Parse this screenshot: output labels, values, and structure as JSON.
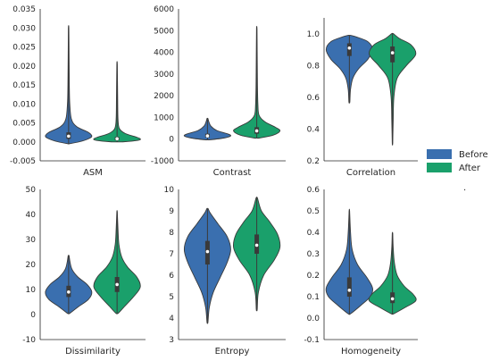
{
  "chart_data": {
    "type": "violin",
    "legend": {
      "placement": "right",
      "entries": [
        {
          "label": "Before",
          "color": "#3a6faf"
        },
        {
          "label": "After",
          "color": "#1aa06b"
        }
      ],
      "footnote": "."
    },
    "panels": [
      {
        "xlabel": "ASM",
        "ylim": [
          -0.005,
          0.035
        ],
        "yticks": [
          "-0.005",
          "0.000",
          "0.005",
          "0.010",
          "0.015",
          "0.020",
          "0.025",
          "0.030",
          "0.035"
        ],
        "series": [
          {
            "name": "Before",
            "min": -0.0005,
            "q1": 0.0008,
            "median": 0.0015,
            "q3": 0.0025,
            "max": 0.03,
            "profile": [
              [
                -0.0005,
                0.02
              ],
              [
                0.0,
                0.45
              ],
              [
                0.0008,
                0.85
              ],
              [
                0.0015,
                1.0
              ],
              [
                0.0025,
                0.85
              ],
              [
                0.004,
                0.35
              ],
              [
                0.006,
                0.12
              ],
              [
                0.01,
                0.05
              ],
              [
                0.015,
                0.03
              ],
              [
                0.022,
                0.02
              ],
              [
                0.03,
                0.01
              ]
            ]
          },
          {
            "name": "After",
            "min": 0.0,
            "q1": 0.0004,
            "median": 0.0008,
            "q3": 0.0013,
            "max": 0.0205,
            "profile": [
              [
                0.0,
                0.25
              ],
              [
                0.0004,
                0.9
              ],
              [
                0.0008,
                1.0
              ],
              [
                0.0013,
                0.8
              ],
              [
                0.0022,
                0.35
              ],
              [
                0.0035,
                0.1
              ],
              [
                0.006,
                0.04
              ],
              [
                0.012,
                0.025
              ],
              [
                0.0205,
                0.01
              ]
            ]
          }
        ]
      },
      {
        "xlabel": "Contrast",
        "ylim": [
          -1000,
          6000
        ],
        "yticks": [
          "-1000",
          "0",
          "1000",
          "2000",
          "3000",
          "4000",
          "5000",
          "6000"
        ],
        "series": [
          {
            "name": "Before",
            "min": -30,
            "q1": 80,
            "median": 150,
            "q3": 250,
            "max": 950,
            "profile": [
              [
                -30,
                0.1
              ],
              [
                50,
                0.7
              ],
              [
                150,
                1.0
              ],
              [
                250,
                0.85
              ],
              [
                400,
                0.4
              ],
              [
                600,
                0.15
              ],
              [
                800,
                0.06
              ],
              [
                950,
                0.02
              ]
            ]
          },
          {
            "name": "After",
            "min": 50,
            "q1": 250,
            "median": 380,
            "q3": 550,
            "max": 5100,
            "profile": [
              [
                50,
                0.1
              ],
              [
                180,
                0.7
              ],
              [
                380,
                1.0
              ],
              [
                550,
                0.8
              ],
              [
                800,
                0.35
              ],
              [
                1100,
                0.1
              ],
              [
                1600,
                0.05
              ],
              [
                2500,
                0.03
              ],
              [
                3800,
                0.02
              ],
              [
                5100,
                0.01
              ]
            ]
          }
        ]
      },
      {
        "xlabel": "Correlation",
        "ylim": [
          0.2,
          1.1
        ],
        "yticks": [
          "0.2",
          "0.4",
          "0.6",
          "0.8",
          "1.0"
        ],
        "series": [
          {
            "name": "Before",
            "min": 0.57,
            "q1": 0.86,
            "median": 0.91,
            "q3": 0.94,
            "max": 0.99,
            "profile": [
              [
                0.57,
                0.02
              ],
              [
                0.65,
                0.05
              ],
              [
                0.72,
                0.15
              ],
              [
                0.78,
                0.4
              ],
              [
                0.84,
                0.8
              ],
              [
                0.9,
                1.0
              ],
              [
                0.95,
                0.8
              ],
              [
                0.98,
                0.3
              ],
              [
                0.99,
                0.05
              ]
            ]
          },
          {
            "name": "After",
            "min": 0.31,
            "q1": 0.82,
            "median": 0.88,
            "q3": 0.92,
            "max": 1.0,
            "profile": [
              [
                0.31,
                0.01
              ],
              [
                0.45,
                0.03
              ],
              [
                0.6,
                0.06
              ],
              [
                0.72,
                0.2
              ],
              [
                0.8,
                0.6
              ],
              [
                0.87,
                1.0
              ],
              [
                0.93,
                0.8
              ],
              [
                0.97,
                0.3
              ],
              [
                1.0,
                0.04
              ]
            ]
          }
        ]
      },
      {
        "xlabel": "Dissimilarity",
        "ylim": [
          -10,
          50
        ],
        "yticks": [
          "-10",
          "0",
          "10",
          "20",
          "30",
          "40",
          "50"
        ],
        "series": [
          {
            "name": "Before",
            "min": 0.5,
            "q1": 7,
            "median": 9,
            "q3": 11.5,
            "max": 23.5,
            "profile": [
              [
                0.5,
                0.05
              ],
              [
                3,
                0.4
              ],
              [
                6,
                0.85
              ],
              [
                9,
                1.0
              ],
              [
                12,
                0.8
              ],
              [
                15,
                0.4
              ],
              [
                18,
                0.15
              ],
              [
                21,
                0.06
              ],
              [
                23.5,
                0.02
              ]
            ]
          },
          {
            "name": "After",
            "min": 0.5,
            "q1": 9,
            "median": 12,
            "q3": 15,
            "max": 41,
            "profile": [
              [
                0.5,
                0.05
              ],
              [
                3,
                0.3
              ],
              [
                7,
                0.7
              ],
              [
                11,
                1.0
              ],
              [
                15,
                0.85
              ],
              [
                19,
                0.45
              ],
              [
                23,
                0.2
              ],
              [
                28,
                0.08
              ],
              [
                34,
                0.04
              ],
              [
                41,
                0.01
              ]
            ]
          }
        ]
      },
      {
        "xlabel": "Entropy",
        "ylim": [
          3,
          10
        ],
        "yticks": [
          "3",
          "4",
          "5",
          "6",
          "7",
          "8",
          "9",
          "10"
        ],
        "series": [
          {
            "name": "Before",
            "min": 3.8,
            "q1": 6.5,
            "median": 7.1,
            "q3": 7.6,
            "max": 9.1,
            "profile": [
              [
                3.8,
                0.02
              ],
              [
                4.5,
                0.08
              ],
              [
                5.2,
                0.25
              ],
              [
                5.9,
                0.55
              ],
              [
                6.6,
                0.85
              ],
              [
                7.2,
                1.0
              ],
              [
                7.8,
                0.85
              ],
              [
                8.4,
                0.45
              ],
              [
                8.9,
                0.12
              ],
              [
                9.1,
                0.03
              ]
            ]
          },
          {
            "name": "After",
            "min": 4.4,
            "q1": 7.0,
            "median": 7.4,
            "q3": 7.9,
            "max": 9.6,
            "profile": [
              [
                4.4,
                0.02
              ],
              [
                5.2,
                0.07
              ],
              [
                6.0,
                0.3
              ],
              [
                6.7,
                0.75
              ],
              [
                7.3,
                1.0
              ],
              [
                7.9,
                0.9
              ],
              [
                8.5,
                0.55
              ],
              [
                9.0,
                0.2
              ],
              [
                9.6,
                0.03
              ]
            ]
          }
        ]
      },
      {
        "xlabel": "Homogeneity",
        "ylim": [
          -0.1,
          0.6
        ],
        "yticks": [
          "-0.1",
          "0.0",
          "0.1",
          "0.2",
          "0.3",
          "0.4",
          "0.5",
          "0.6"
        ],
        "series": [
          {
            "name": "Before",
            "min": 0.02,
            "q1": 0.1,
            "median": 0.13,
            "q3": 0.19,
            "max": 0.5,
            "profile": [
              [
                0.02,
                0.05
              ],
              [
                0.06,
                0.5
              ],
              [
                0.1,
                0.9
              ],
              [
                0.14,
                1.0
              ],
              [
                0.19,
                0.75
              ],
              [
                0.25,
                0.35
              ],
              [
                0.32,
                0.12
              ],
              [
                0.4,
                0.05
              ],
              [
                0.5,
                0.01
              ]
            ]
          },
          {
            "name": "After",
            "min": 0.02,
            "q1": 0.07,
            "median": 0.09,
            "q3": 0.12,
            "max": 0.395,
            "profile": [
              [
                0.02,
                0.05
              ],
              [
                0.05,
                0.55
              ],
              [
                0.08,
                1.0
              ],
              [
                0.11,
                0.9
              ],
              [
                0.15,
                0.5
              ],
              [
                0.2,
                0.2
              ],
              [
                0.26,
                0.08
              ],
              [
                0.33,
                0.03
              ],
              [
                0.395,
                0.01
              ]
            ]
          }
        ]
      }
    ]
  }
}
